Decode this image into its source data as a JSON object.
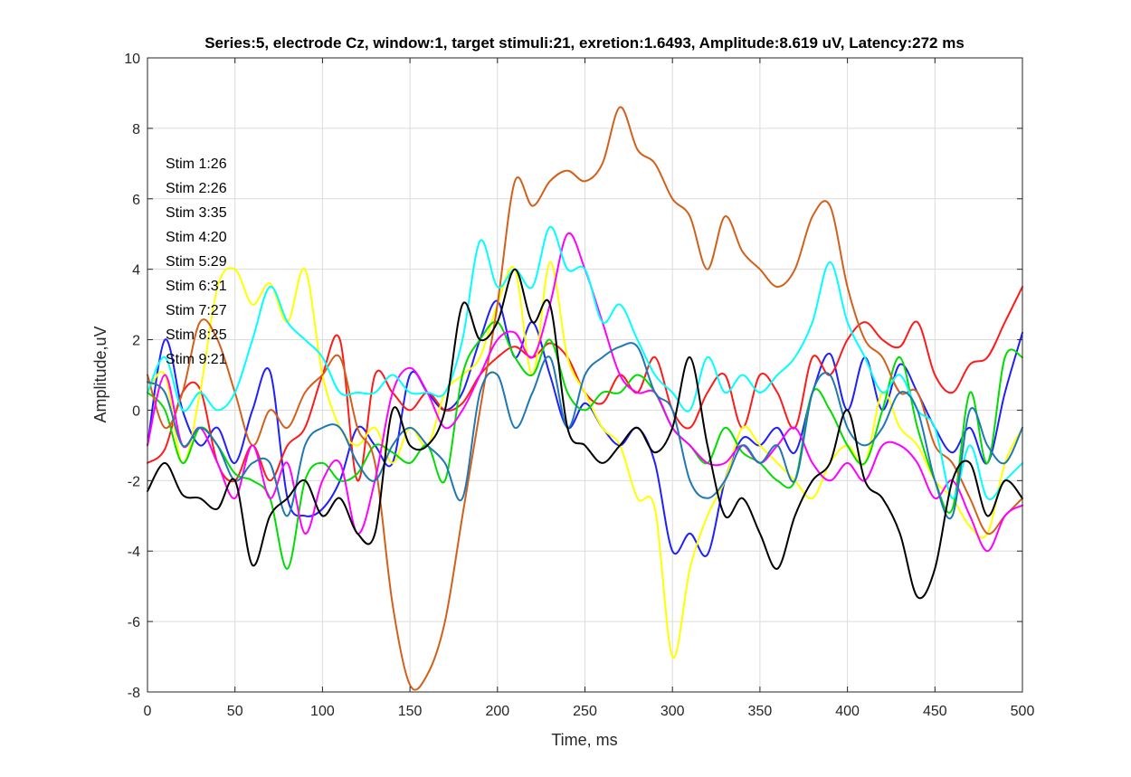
{
  "chart_data": {
    "type": "line",
    "title": "Series:5, electrode Cz, window:1, target stimuli:21, exretion:1.6493, Amplitude:8.619 uV, Latency:272 ms",
    "xlabel": "Time, ms",
    "ylabel": "Amplitude,uV",
    "xlim": [
      0,
      500
    ],
    "ylim": [
      -8,
      10
    ],
    "xticks": [
      0,
      50,
      100,
      150,
      200,
      250,
      300,
      350,
      400,
      450,
      500
    ],
    "yticks": [
      -8,
      -6,
      -4,
      -2,
      0,
      2,
      4,
      6,
      8,
      10
    ],
    "grid": true,
    "annotations": [
      "Stim 1:26",
      "Stim 2:26",
      "Stim 3:35",
      "Stim 4:20",
      "Stim 5:29",
      "Stim 6:31",
      "Stim 7:27",
      "Stim 8:25",
      "Stim 9:21"
    ],
    "x": [
      0,
      10,
      20,
      30,
      40,
      50,
      60,
      70,
      80,
      90,
      100,
      110,
      120,
      130,
      140,
      150,
      160,
      170,
      180,
      190,
      200,
      210,
      220,
      230,
      240,
      250,
      260,
      270,
      280,
      290,
      300,
      310,
      320,
      330,
      340,
      350,
      360,
      370,
      380,
      390,
      400,
      410,
      420,
      430,
      440,
      450,
      460,
      470,
      480,
      490,
      500
    ],
    "series": [
      {
        "color": "#1f1fff",
        "values": [
          -1.0,
          2.0,
          0.0,
          -1.0,
          -0.5,
          -1.5,
          0.0,
          1.1,
          -2.5,
          -3.0,
          -2.8,
          -2.0,
          -0.5,
          -1.0,
          -1.5,
          1.0,
          0.5,
          0.0,
          0.5,
          2.0,
          3.1,
          1.5,
          2.5,
          1.0,
          -0.5,
          0.2,
          -0.5,
          -1.0,
          -0.5,
          -1.5,
          -4.0,
          -3.5,
          -4.1,
          -2.0,
          -0.8,
          -1.0,
          -0.5,
          -1.2,
          0.5,
          1.6,
          0.0,
          1.5,
          0.0,
          1.3,
          0.5,
          -0.5,
          -1.2,
          -0.5,
          -1.5,
          0.5,
          2.2
        ]
      },
      {
        "color": "#ff1a1a",
        "values": [
          -1.5,
          -1.1,
          0.5,
          0.6,
          -1.5,
          -2.0,
          -1.0,
          -2.0,
          -1.0,
          -0.5,
          1.0,
          2.0,
          -2.0,
          1.0,
          0.5,
          0.0,
          0.5,
          0.0,
          0.2,
          1.0,
          1.5,
          1.8,
          1.5,
          1.9,
          1.5,
          0.5,
          0.2,
          1.0,
          0.5,
          1.5,
          0.0,
          -0.5,
          0.5,
          1.0,
          -0.5,
          1.0,
          0.5,
          -0.5,
          1.5,
          1.0,
          2.0,
          2.5,
          2.0,
          1.8,
          2.5,
          1.0,
          0.5,
          1.3,
          1.5,
          2.5,
          3.5
        ]
      },
      {
        "color": "#ffff00",
        "values": [
          0.5,
          1.0,
          -1.5,
          0.5,
          3.5,
          4.0,
          3.0,
          3.6,
          2.5,
          4.0,
          1.0,
          -0.5,
          -1.0,
          -0.5,
          -1.5,
          -0.5,
          -1.0,
          0.5,
          1.0,
          1.5,
          3.0,
          4.0,
          1.0,
          4.2,
          1.5,
          0.5,
          -0.5,
          -1.0,
          -2.5,
          -2.8,
          -7.0,
          -4.5,
          -3.0,
          -2.0,
          -0.5,
          -1.0,
          -1.5,
          -2.0,
          -2.5,
          -1.5,
          -1.0,
          -1.5,
          0.5,
          -0.5,
          -1.0,
          -2.0,
          -2.5,
          -3.3,
          -3.5,
          -1.5,
          -0.5
        ]
      },
      {
        "color": "#00dd00",
        "values": [
          0.5,
          0.0,
          -1.5,
          -0.5,
          -1.0,
          -1.8,
          -2.0,
          -2.5,
          -4.5,
          -2.0,
          -1.5,
          -2.0,
          -1.8,
          -1.0,
          -1.2,
          -1.5,
          -1.0,
          -2.0,
          1.0,
          2.0,
          2.5,
          1.5,
          1.0,
          2.0,
          0.5,
          0.0,
          0.5,
          0.5,
          1.0,
          0.5,
          -0.5,
          -1.0,
          -1.5,
          -0.5,
          -1.2,
          -1.5,
          -2.0,
          -2.0,
          0.5,
          0.0,
          -1.0,
          -1.5,
          0.0,
          1.5,
          -0.5,
          -2.0,
          -2.8,
          0.5,
          -1.5,
          1.5,
          1.5
        ]
      },
      {
        "color": "#d2601a",
        "values": [
          1.0,
          -0.5,
          0.5,
          2.5,
          2.0,
          0.5,
          -1.0,
          0.0,
          -0.5,
          0.5,
          1.0,
          1.5,
          -0.5,
          -1.5,
          -5.5,
          -7.8,
          -7.5,
          -6.0,
          -3.0,
          0.0,
          3.0,
          6.5,
          5.8,
          6.5,
          6.8,
          6.5,
          7.0,
          8.6,
          7.4,
          7.0,
          6.0,
          5.5,
          4.0,
          5.5,
          4.5,
          4.0,
          3.5,
          4.0,
          5.5,
          5.8,
          3.5,
          2.0,
          1.5,
          0.5,
          0.5,
          -1.0,
          -1.5,
          -2.5,
          -3.5,
          -3.0,
          -2.5
        ]
      },
      {
        "color": "#ff00ff",
        "values": [
          -1.0,
          1.0,
          -1.0,
          -0.5,
          -1.5,
          -2.5,
          -1.0,
          -2.5,
          -1.5,
          -3.5,
          -2.0,
          -1.5,
          -3.5,
          -2.0,
          0.5,
          1.2,
          0.5,
          -0.5,
          0.0,
          1.0,
          2.0,
          2.2,
          1.5,
          3.0,
          5.0,
          4.0,
          2.5,
          1.0,
          0.5,
          0.5,
          -0.5,
          -1.0,
          -1.5,
          -1.5,
          -1.0,
          -1.5,
          -1.0,
          -0.5,
          -1.5,
          -2.0,
          -1.5,
          -2.0,
          -1.0,
          -1.0,
          -1.5,
          -2.5,
          -2.0,
          -3.0,
          -4.0,
          -3.0,
          -2.7
        ]
      },
      {
        "color": "#00ffff",
        "values": [
          0.5,
          1.5,
          0.0,
          0.5,
          0.0,
          0.5,
          2.0,
          3.5,
          2.5,
          2.0,
          1.5,
          0.5,
          0.5,
          0.5,
          1.0,
          0.5,
          0.5,
          0.5,
          2.0,
          4.8,
          3.5,
          4.0,
          3.5,
          5.2,
          4.0,
          4.0,
          2.5,
          3.0,
          2.0,
          1.0,
          0.5,
          0.0,
          1.5,
          0.5,
          1.0,
          0.5,
          1.0,
          1.5,
          2.5,
          4.2,
          2.5,
          1.5,
          0.5,
          1.0,
          0.0,
          -0.5,
          -2.5,
          -1.0,
          -2.5,
          -2.0,
          -1.5
        ]
      },
      {
        "color": "#1f78b4",
        "values": [
          0.8,
          0.5,
          -1.0,
          -0.5,
          -1.0,
          -2.0,
          -1.5,
          -1.5,
          -3.0,
          -1.0,
          -0.5,
          -0.5,
          -1.5,
          -2.0,
          -1.0,
          -0.5,
          -1.0,
          -1.5,
          -2.5,
          0.5,
          1.0,
          -0.5,
          0.5,
          1.5,
          -0.5,
          1.0,
          1.5,
          1.8,
          1.8,
          0.5,
          0.0,
          -2.0,
          -2.5,
          -2.0,
          -1.0,
          -1.5,
          -1.0,
          -2.0,
          0.5,
          1.0,
          -0.5,
          -1.0,
          -0.5,
          0.5,
          0.0,
          -2.0,
          -3.0,
          0.0,
          -1.0,
          -1.5,
          -0.5
        ]
      },
      {
        "color": "#000000",
        "values": [
          -2.3,
          -1.5,
          -2.4,
          -2.5,
          -2.8,
          -2.0,
          -4.4,
          -3.0,
          -2.5,
          -2.0,
          -3.0,
          -2.5,
          -3.5,
          -3.5,
          0.0,
          -1.0,
          -1.0,
          0.0,
          3.0,
          2.0,
          2.5,
          4.0,
          2.5,
          3.0,
          -0.5,
          -1.0,
          -1.5,
          -1.0,
          -0.5,
          -1.2,
          -0.5,
          1.5,
          -1.0,
          -3.0,
          -2.5,
          -3.5,
          -4.5,
          -3.0,
          -2.0,
          -1.5,
          0.0,
          -2.0,
          -2.5,
          -3.5,
          -5.3,
          -4.5,
          -2.0,
          -1.5,
          -3.0,
          -2.0,
          -2.5
        ]
      }
    ]
  }
}
